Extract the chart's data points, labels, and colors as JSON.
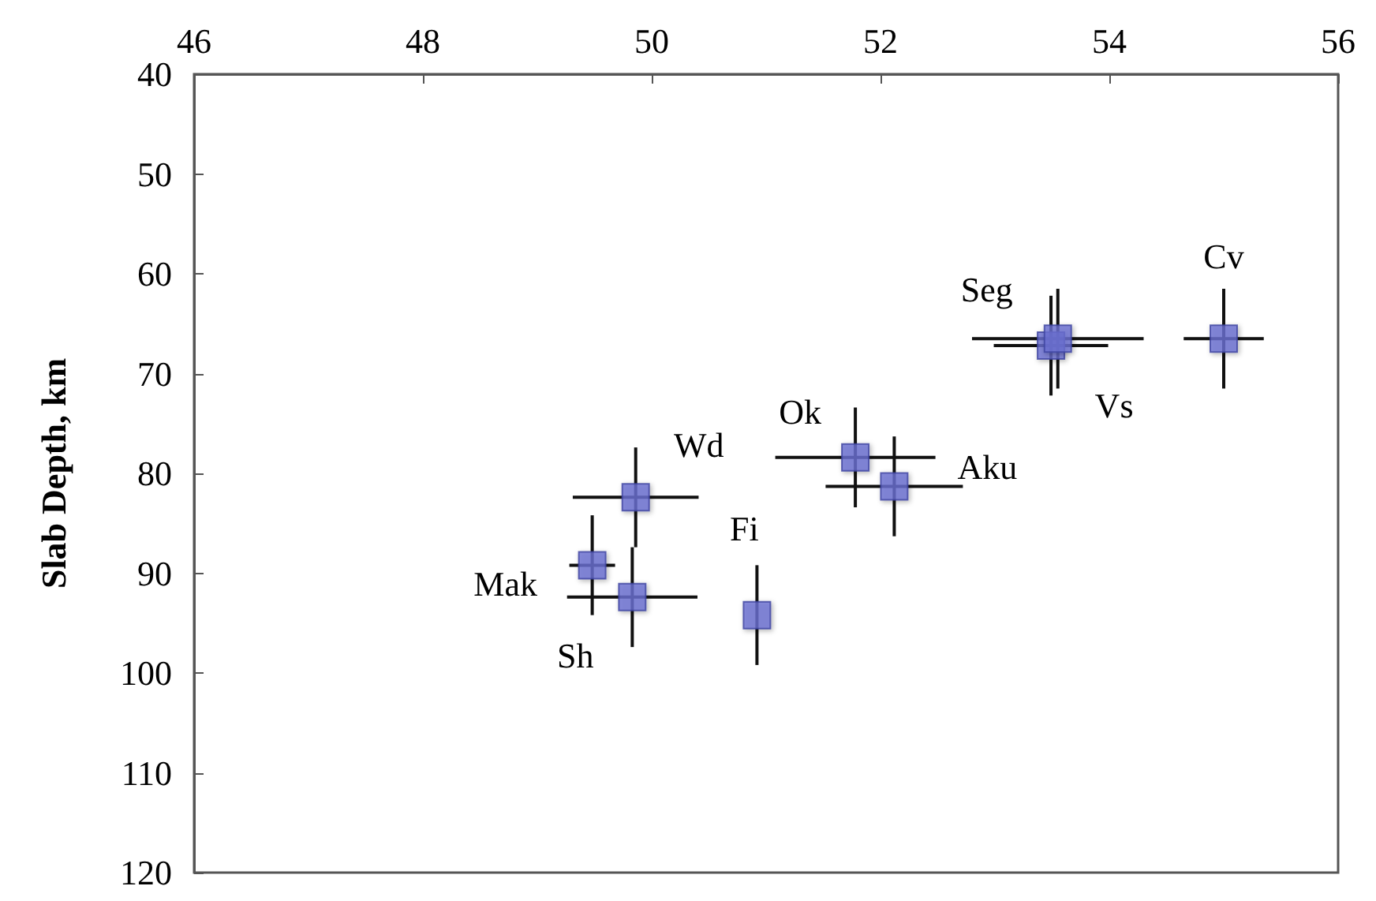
{
  "chart_data": {
    "type": "scatter",
    "ylabel": "Slab Depth, km",
    "x": [
      55.0,
      53.49,
      53.55,
      51.78,
      52.12,
      49.86,
      49.48,
      49.83,
      50.92
    ],
    "values": [
      66.5,
      67.2,
      66.5,
      78.4,
      81.3,
      82.4,
      89.2,
      92.4,
      94.2
    ],
    "errors": [
      5,
      5,
      5,
      5,
      5,
      5,
      5,
      5,
      5
    ],
    "xerrors": [
      0.35,
      0.5,
      0.75,
      0.7,
      0.6,
      0.55,
      0.2,
      0.57,
      null
    ],
    "color": "#6a6fd2",
    "marker": "square",
    "xlim": [
      46,
      56
    ],
    "xticks": [
      46,
      48,
      50,
      52,
      54,
      56
    ],
    "ylim": [
      120,
      40
    ],
    "yticks": [
      40,
      50,
      60,
      70,
      80,
      90,
      100,
      110,
      120
    ],
    "grid": false,
    "annotations": [
      {
        "text": "Cv",
        "x": 55.0,
        "y": 66.5
      },
      {
        "text": "Vs",
        "x": 53.49,
        "y": 67.2
      },
      {
        "text": "Seg",
        "x": 53.55,
        "y": 66.5
      },
      {
        "text": "Ok",
        "x": 51.78,
        "y": 78.4
      },
      {
        "text": "Aku",
        "x": 52.12,
        "y": 81.3
      },
      {
        "text": "Wd",
        "x": 49.86,
        "y": 82.4
      },
      {
        "text": "Mak",
        "x": 49.48,
        "y": 89.2
      },
      {
        "text": "Sh",
        "x": 49.83,
        "y": 92.4
      },
      {
        "text": "Fi",
        "x": 50.92,
        "y": 94.2
      }
    ]
  }
}
